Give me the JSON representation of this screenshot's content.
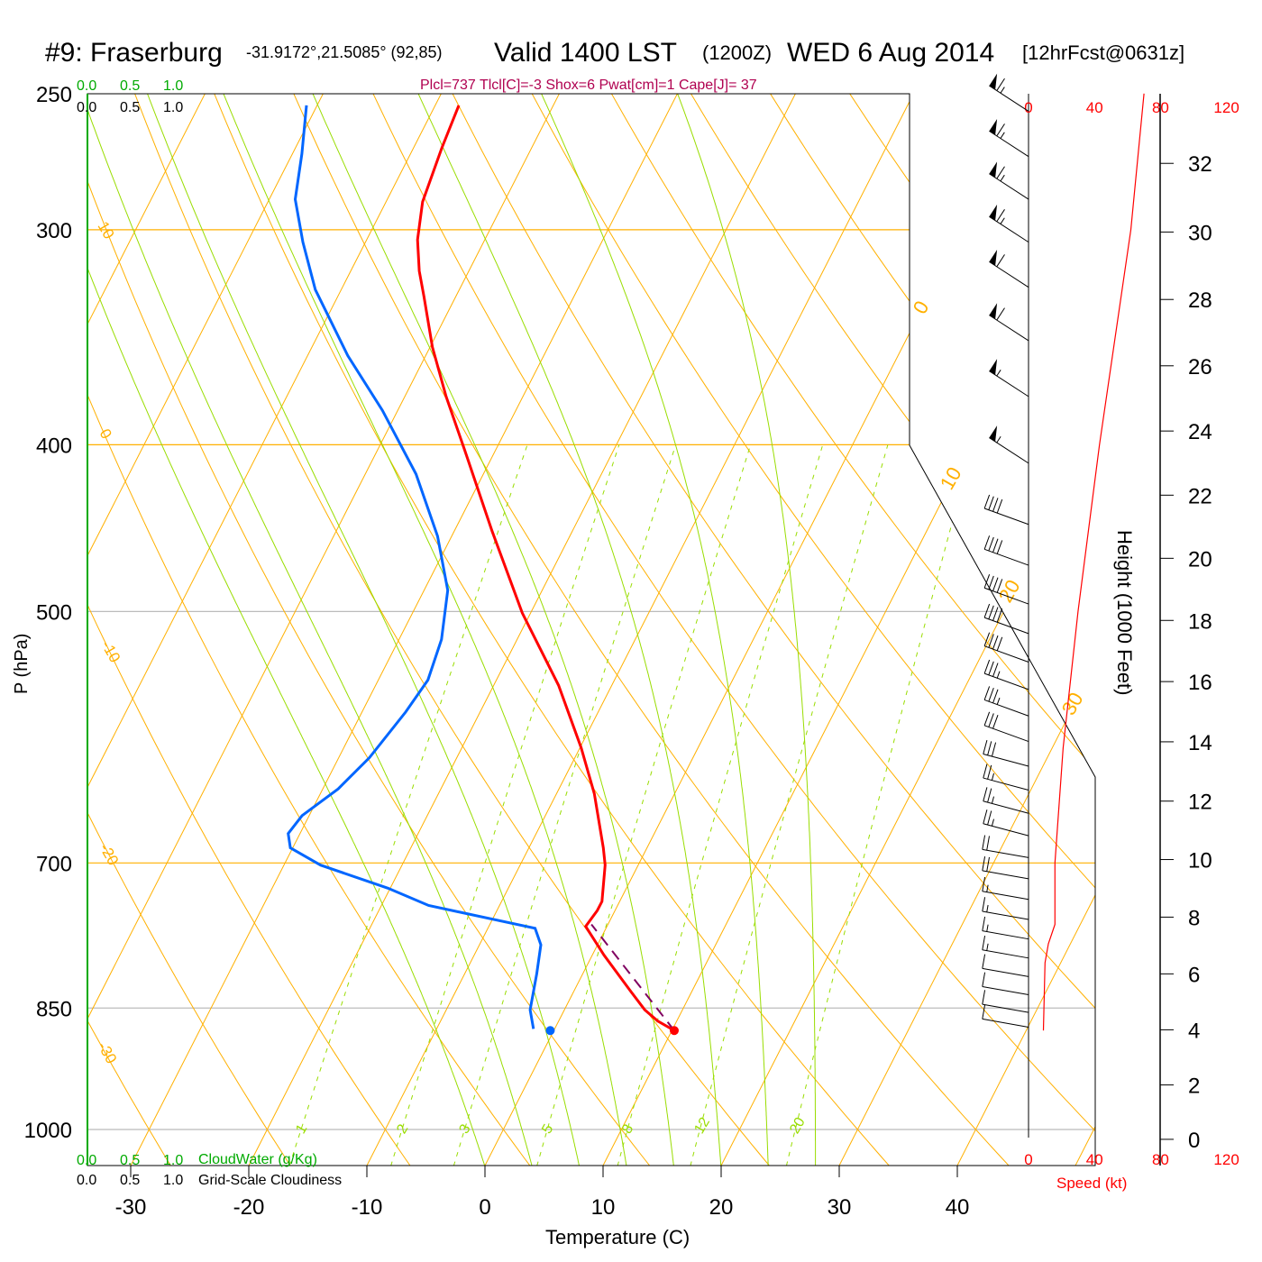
{
  "title": {
    "station": "#9: Fraserburg",
    "coords": "-31.9172°,21.5085° (92,85)",
    "valid": "Valid 1400 LST",
    "zulu": "(1200Z)",
    "date": "WED 6 Aug 2014",
    "forecast": "[12hrFcst@0631z]"
  },
  "indices": "Plcl=737 Tlcl[C]=-3 Shox=6 Pwat[cm]=1 Cape[J]= 37",
  "cloud_scales": {
    "cloudwater_ticks": [
      "0.0",
      "0.5",
      "1.0"
    ],
    "cloudiness_ticks": [
      "0.0",
      "0.5",
      "1.0"
    ],
    "cloudwater_label": "CloudWater (g/Kg)",
    "cloudiness_label": "Grid-Scale Cloudiness"
  },
  "colors": {
    "temperature": "#ff0000",
    "dewpoint": "#0066ff",
    "parcel": "#800060",
    "isotherm": "#ffb000",
    "moist": "#99dd00",
    "indices": "#b00050",
    "cloud": "#00aa00"
  },
  "chart_data": {
    "type": "line",
    "subtype": "skew-T log-P sounding",
    "xlabel": "Temperature (C)",
    "ylabel": "P (hPa)",
    "right_ylabel": "Height (1000 Feet)",
    "speed_label": "Speed (kt)",
    "pressure_ticks": [
      250,
      300,
      400,
      500,
      700,
      850,
      1000
    ],
    "temperature_ticks": [
      -30,
      -20,
      -10,
      0,
      10,
      20,
      30,
      40
    ],
    "height_ticks": [
      0,
      2,
      4,
      6,
      8,
      10,
      12,
      14,
      16,
      18,
      20,
      22,
      24,
      26,
      28,
      30,
      32
    ],
    "speed_ticks": [
      0,
      40,
      80,
      120
    ],
    "mixing_ratio_labels": [
      1,
      2,
      3,
      5,
      8,
      12,
      20
    ],
    "left_adiabat_labels": [
      "10",
      "0",
      "-10",
      "-20",
      "-30"
    ],
    "right_adiabat_labels": [
      "0",
      "10",
      "20",
      "30"
    ],
    "temperature": [
      [
        876,
        10.2
      ],
      [
        865,
        8.4
      ],
      [
        852,
        6.8
      ],
      [
        831,
        4.8
      ],
      [
        792,
        1.0
      ],
      [
        762,
        -1.8
      ],
      [
        746,
        -1.5
      ],
      [
        737,
        -1.5
      ],
      [
        702,
        -2.8
      ],
      [
        686,
        -3.7
      ],
      [
        638,
        -6.8
      ],
      [
        600,
        -9.9
      ],
      [
        552,
        -14.5
      ],
      [
        501,
        -20.7
      ],
      [
        449,
        -26.8
      ],
      [
        403,
        -32.6
      ],
      [
        375,
        -36.5
      ],
      [
        351,
        -39.8
      ],
      [
        328,
        -42.7
      ],
      [
        317,
        -44.2
      ],
      [
        304,
        -45.7
      ],
      [
        289,
        -46.9
      ],
      [
        269,
        -47.6
      ],
      [
        254,
        -48.0
      ]
    ],
    "dewpoint": [
      [
        874,
        -1.8
      ],
      [
        852,
        -2.9
      ],
      [
        812,
        -3.9
      ],
      [
        781,
        -4.8
      ],
      [
        764,
        -6.0
      ],
      [
        741,
        -16.0
      ],
      [
        724,
        -20.2
      ],
      [
        702,
        -26.9
      ],
      [
        686,
        -30.2
      ],
      [
        673,
        -31.0
      ],
      [
        657,
        -30.6
      ],
      [
        634,
        -28.7
      ],
      [
        608,
        -27.4
      ],
      [
        572,
        -26.3
      ],
      [
        548,
        -25.8
      ],
      [
        519,
        -26.4
      ],
      [
        486,
        -28.0
      ],
      [
        452,
        -31.2
      ],
      [
        416,
        -35.7
      ],
      [
        382,
        -41.3
      ],
      [
        355,
        -46.6
      ],
      [
        325,
        -52.2
      ],
      [
        305,
        -55.3
      ],
      [
        288,
        -57.8
      ],
      [
        271,
        -59.2
      ],
      [
        254,
        -60.9
      ]
    ],
    "surface_temperature": [
      876,
      10.2
    ],
    "surface_dewpoint": [
      876,
      -0.3
    ],
    "parcel": [
      [
        876,
        10.2
      ],
      [
        760,
        -1.4
      ]
    ],
    "wind_speed": [
      [
        876,
        9
      ],
      [
        800,
        10
      ],
      [
        780,
        12
      ],
      [
        760,
        16
      ],
      [
        700,
        16
      ],
      [
        600,
        21
      ],
      [
        500,
        30
      ],
      [
        400,
        43
      ],
      [
        300,
        62
      ],
      [
        250,
        70
      ]
    ],
    "wind_barbs": [
      [
        256,
        303,
        65
      ],
      [
        272,
        303,
        65
      ],
      [
        288,
        303,
        65
      ],
      [
        305,
        303,
        65
      ],
      [
        324,
        303,
        60
      ],
      [
        348,
        303,
        60
      ],
      [
        375,
        303,
        55
      ],
      [
        410,
        303,
        55
      ],
      [
        445,
        290,
        40
      ],
      [
        470,
        290,
        40
      ],
      [
        495,
        290,
        40
      ],
      [
        515,
        290,
        40
      ],
      [
        535,
        290,
        40
      ],
      [
        555,
        290,
        35
      ],
      [
        575,
        290,
        35
      ],
      [
        595,
        290,
        30
      ],
      [
        615,
        285,
        30
      ],
      [
        635,
        285,
        25
      ],
      [
        655,
        285,
        25
      ],
      [
        675,
        285,
        25
      ],
      [
        695,
        280,
        20
      ],
      [
        715,
        280,
        20
      ],
      [
        735,
        280,
        15
      ],
      [
        755,
        280,
        15
      ],
      [
        775,
        280,
        15
      ],
      [
        795,
        280,
        15
      ],
      [
        815,
        280,
        10
      ],
      [
        835,
        280,
        10
      ],
      [
        855,
        280,
        10
      ],
      [
        872,
        280,
        10
      ]
    ],
    "moist_adiabats_start_c": [
      0,
      4,
      8,
      12,
      16,
      20,
      24,
      28
    ],
    "dry_adiabats_theta_c": [
      -40,
      -30,
      -20,
      -10,
      0,
      10,
      20,
      30,
      40,
      50,
      60,
      70,
      80,
      90,
      100,
      110,
      120,
      130,
      140,
      150,
      160,
      170
    ],
    "isotherms_c": [
      -140,
      -130,
      -120,
      -110,
      -100,
      -90,
      -80,
      -70,
      -60,
      -50,
      -40,
      -30,
      -20,
      -10,
      0,
      10,
      20,
      30,
      40,
      50
    ]
  }
}
